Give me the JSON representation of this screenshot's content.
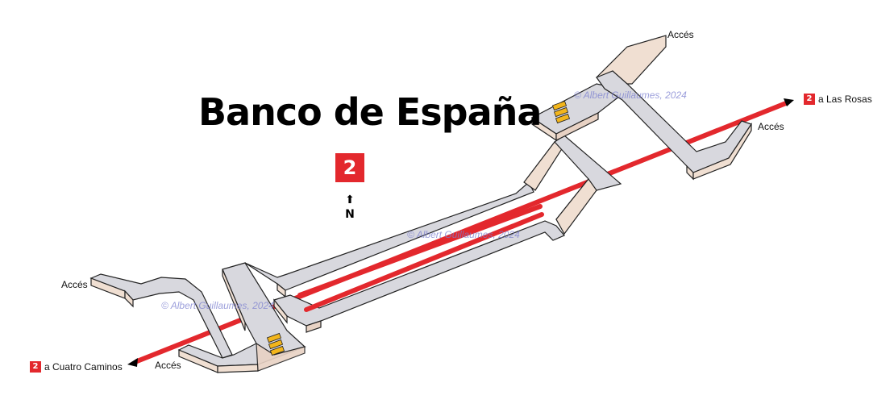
{
  "title": "Banco de España",
  "line_badge": "2",
  "north_label": "N",
  "access_labels": [
    "Accés",
    "Accés",
    "Accés",
    "Accés"
  ],
  "destinations": [
    {
      "line": "2",
      "text": "a Las Rosas"
    },
    {
      "line": "2",
      "text": "a Cuatro Caminos"
    }
  ],
  "watermark": "© Albert Guillaumes, 2024",
  "colors": {
    "line_red": "#e3282d",
    "corridor_top": "#d8d8de",
    "corridor_side": "#f0dfd2",
    "escalator": "#f2b51c"
  },
  "icons": [
    "north-arrow-icon",
    "escalator-icon"
  ]
}
